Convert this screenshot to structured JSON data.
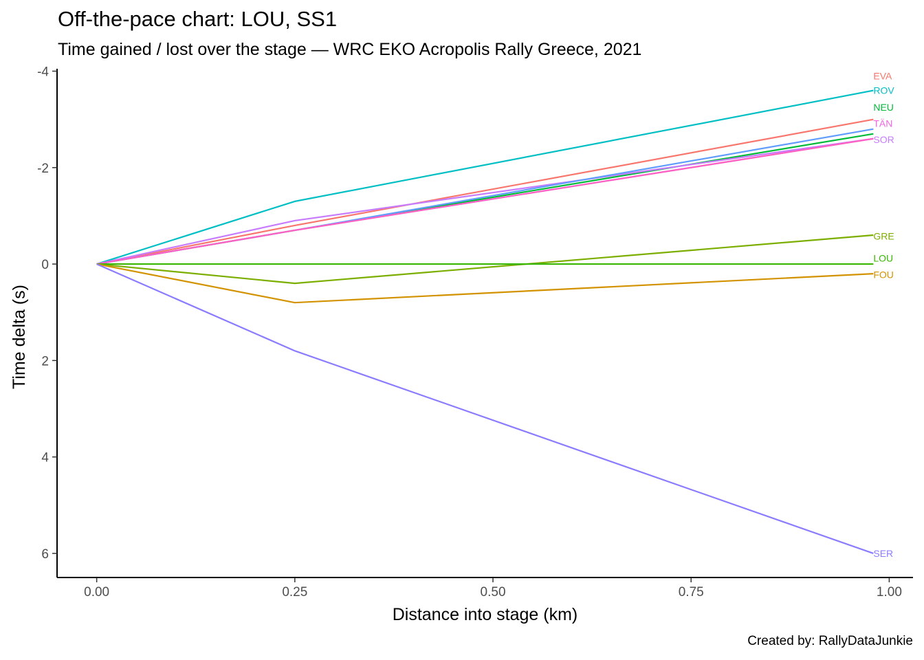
{
  "chart_data": {
    "type": "line",
    "title": "Off-the-pace chart: LOU, SS1",
    "subtitle": "Time gained / lost over the stage — WRC EKO Acropolis Rally Greece, 2021",
    "xlabel": "Distance into stage (km)",
    "ylabel": "Time delta (s)",
    "caption": "Created by: RallyDataJunkie",
    "xlim": [
      -0.05,
      1.03
    ],
    "ylim": [
      -4.05,
      6.5
    ],
    "y_reversed": true,
    "grid": false,
    "legend": "none",
    "x_ticks": [
      0,
      0.25,
      0.5,
      0.75,
      1.0
    ],
    "x_tick_labels": [
      "0.00",
      "0.25",
      "0.50",
      "0.75",
      "1.00"
    ],
    "y_ticks": [
      -4,
      -2,
      0,
      2,
      4,
      6
    ],
    "y_tick_labels": [
      "-4",
      "-2",
      "0",
      "2",
      "4",
      "6"
    ],
    "x": [
      0,
      0.25,
      0.98
    ],
    "series": [
      {
        "name": "EVA",
        "color": "#F8766D",
        "values": [
          0,
          -0.8,
          -3.0
        ]
      },
      {
        "name": "ROV",
        "color": "#00BFC4",
        "values": [
          0,
          -1.3,
          -3.6
        ]
      },
      {
        "name": "NEU",
        "color": "#00BA38",
        "values": [
          0,
          -0.7,
          -2.7
        ]
      },
      {
        "name": "TÄN",
        "color": "#F564E3",
        "values": [
          0,
          -0.7,
          -2.6
        ]
      },
      {
        "name": "SOR",
        "color": "#C77CFF",
        "values": [
          0,
          -0.9,
          -2.6
        ]
      },
      {
        "name": "",
        "color": "#619CFF",
        "values": [
          0,
          -0.7,
          -2.8
        ]
      },
      {
        "name": "",
        "color": "#FF61C3",
        "values": [
          0,
          -0.7,
          -2.6
        ]
      },
      {
        "name": "GRE",
        "color": "#7CAE00",
        "values": [
          0,
          0.4,
          -0.6
        ]
      },
      {
        "name": "LOU",
        "color": "#39B600",
        "values": [
          0,
          0,
          0
        ]
      },
      {
        "name": "FOU",
        "color": "#D39200",
        "values": [
          0,
          0.8,
          0.2
        ]
      },
      {
        "name": "SER",
        "color": "#8B7CFF",
        "values": [
          0,
          1.8,
          6.0
        ]
      }
    ],
    "end_labels": [
      {
        "text": "EVA",
        "color": "#F8766D",
        "y": -3.9
      },
      {
        "text": "ROV",
        "color": "#00BFC4",
        "y": -3.6
      },
      {
        "text": "NEU",
        "color": "#00BA38",
        "y": -3.25
      },
      {
        "text": "TÄN",
        "color": "#F564E3",
        "y": -2.92
      },
      {
        "text": "SOR",
        "color": "#C77CFF",
        "y": -2.58
      },
      {
        "text": "GRE",
        "color": "#7CAE00",
        "y": -0.58
      },
      {
        "text": "LOU",
        "color": "#39B600",
        "y": -0.12
      },
      {
        "text": "FOU",
        "color": "#D39200",
        "y": 0.22
      },
      {
        "text": "SER",
        "color": "#8B7CFF",
        "y": 6.0
      }
    ]
  }
}
